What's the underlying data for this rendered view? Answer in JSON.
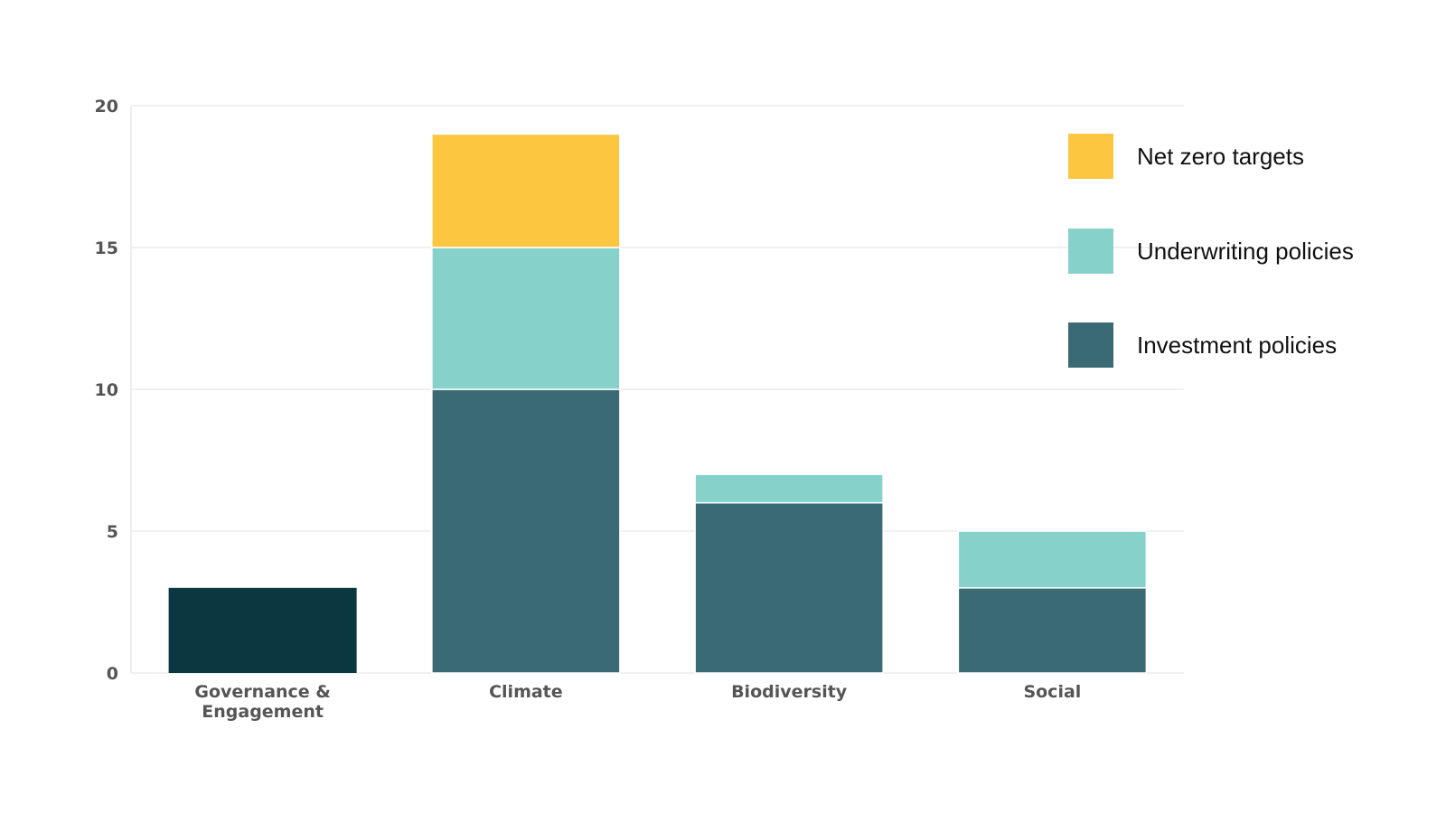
{
  "chart_data": {
    "type": "bar",
    "stacked": true,
    "title": "",
    "xlabel": "",
    "ylabel": "",
    "ylim": [
      0,
      20
    ],
    "yticks": [
      0,
      5,
      10,
      15,
      20
    ],
    "grid": true,
    "legend_position": "top-right",
    "categories": [
      [
        "Governance &",
        "Engagement"
      ],
      [
        "Climate"
      ],
      [
        "Biodiversity"
      ],
      [
        "Social"
      ]
    ],
    "series": [
      {
        "name": "Investment policies",
        "color": "#3a6b74",
        "values": [
          0,
          10,
          6,
          3
        ]
      },
      {
        "name": "Underwriting policies",
        "color": "#86d1ca",
        "values": [
          0,
          5,
          1,
          2
        ]
      },
      {
        "name": "Net zero targets",
        "color": "#fdc641",
        "values": [
          0,
          4,
          0,
          0
        ]
      }
    ],
    "unlabelled_bars": [
      {
        "category_index": 0,
        "value": 3,
        "color": "#0b3740"
      }
    ],
    "legend": [
      {
        "name": "Net zero targets",
        "color": "#fdc641"
      },
      {
        "name": "Underwriting policies",
        "color": "#86d1ca"
      },
      {
        "name": "Investment policies",
        "color": "#3a6b74"
      }
    ]
  }
}
